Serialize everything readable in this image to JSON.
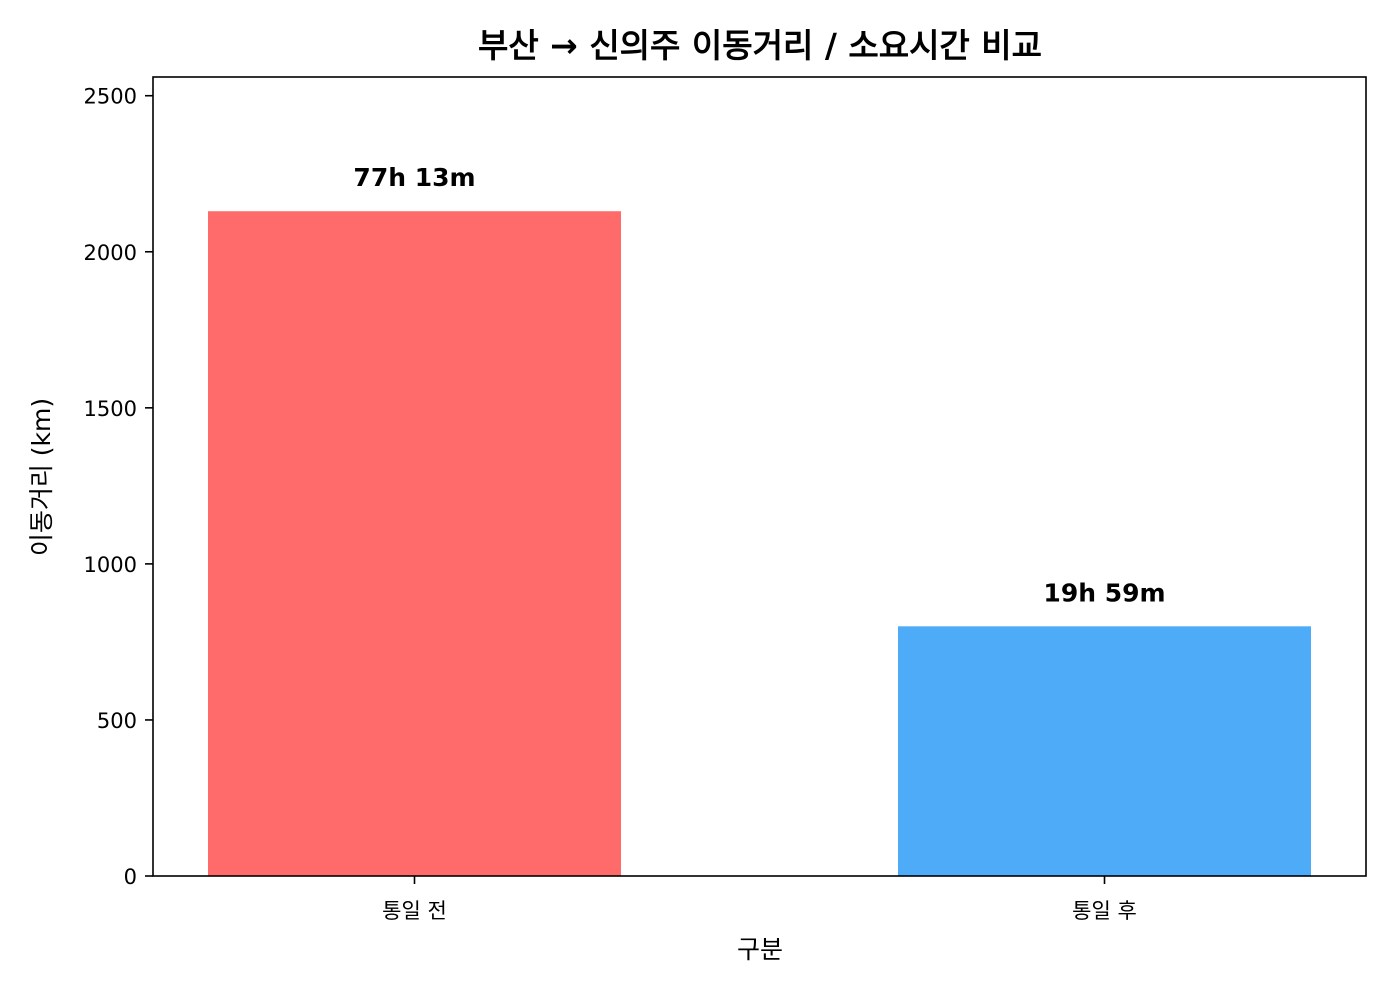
{
  "chart_data": {
    "type": "bar",
    "title": "부산 → 신의주 이동거리 / 소요시간 비교",
    "xlabel": "구분",
    "ylabel": "이동거리 (km)",
    "categories": [
      "통일 전",
      "통일 후"
    ],
    "values": [
      2130,
      800
    ],
    "data_labels": [
      "77h 13m",
      "19h 59m"
    ],
    "colors": [
      "#FF6B6B",
      "#4DABF7"
    ],
    "ylim": [
      0,
      2560
    ],
    "yticks": [
      0,
      500,
      1000,
      1500,
      2000,
      2500
    ],
    "ytick_labels": [
      "0",
      "500",
      "1000",
      "1500",
      "2000",
      "2500"
    ],
    "grid": false,
    "legend": "none"
  }
}
